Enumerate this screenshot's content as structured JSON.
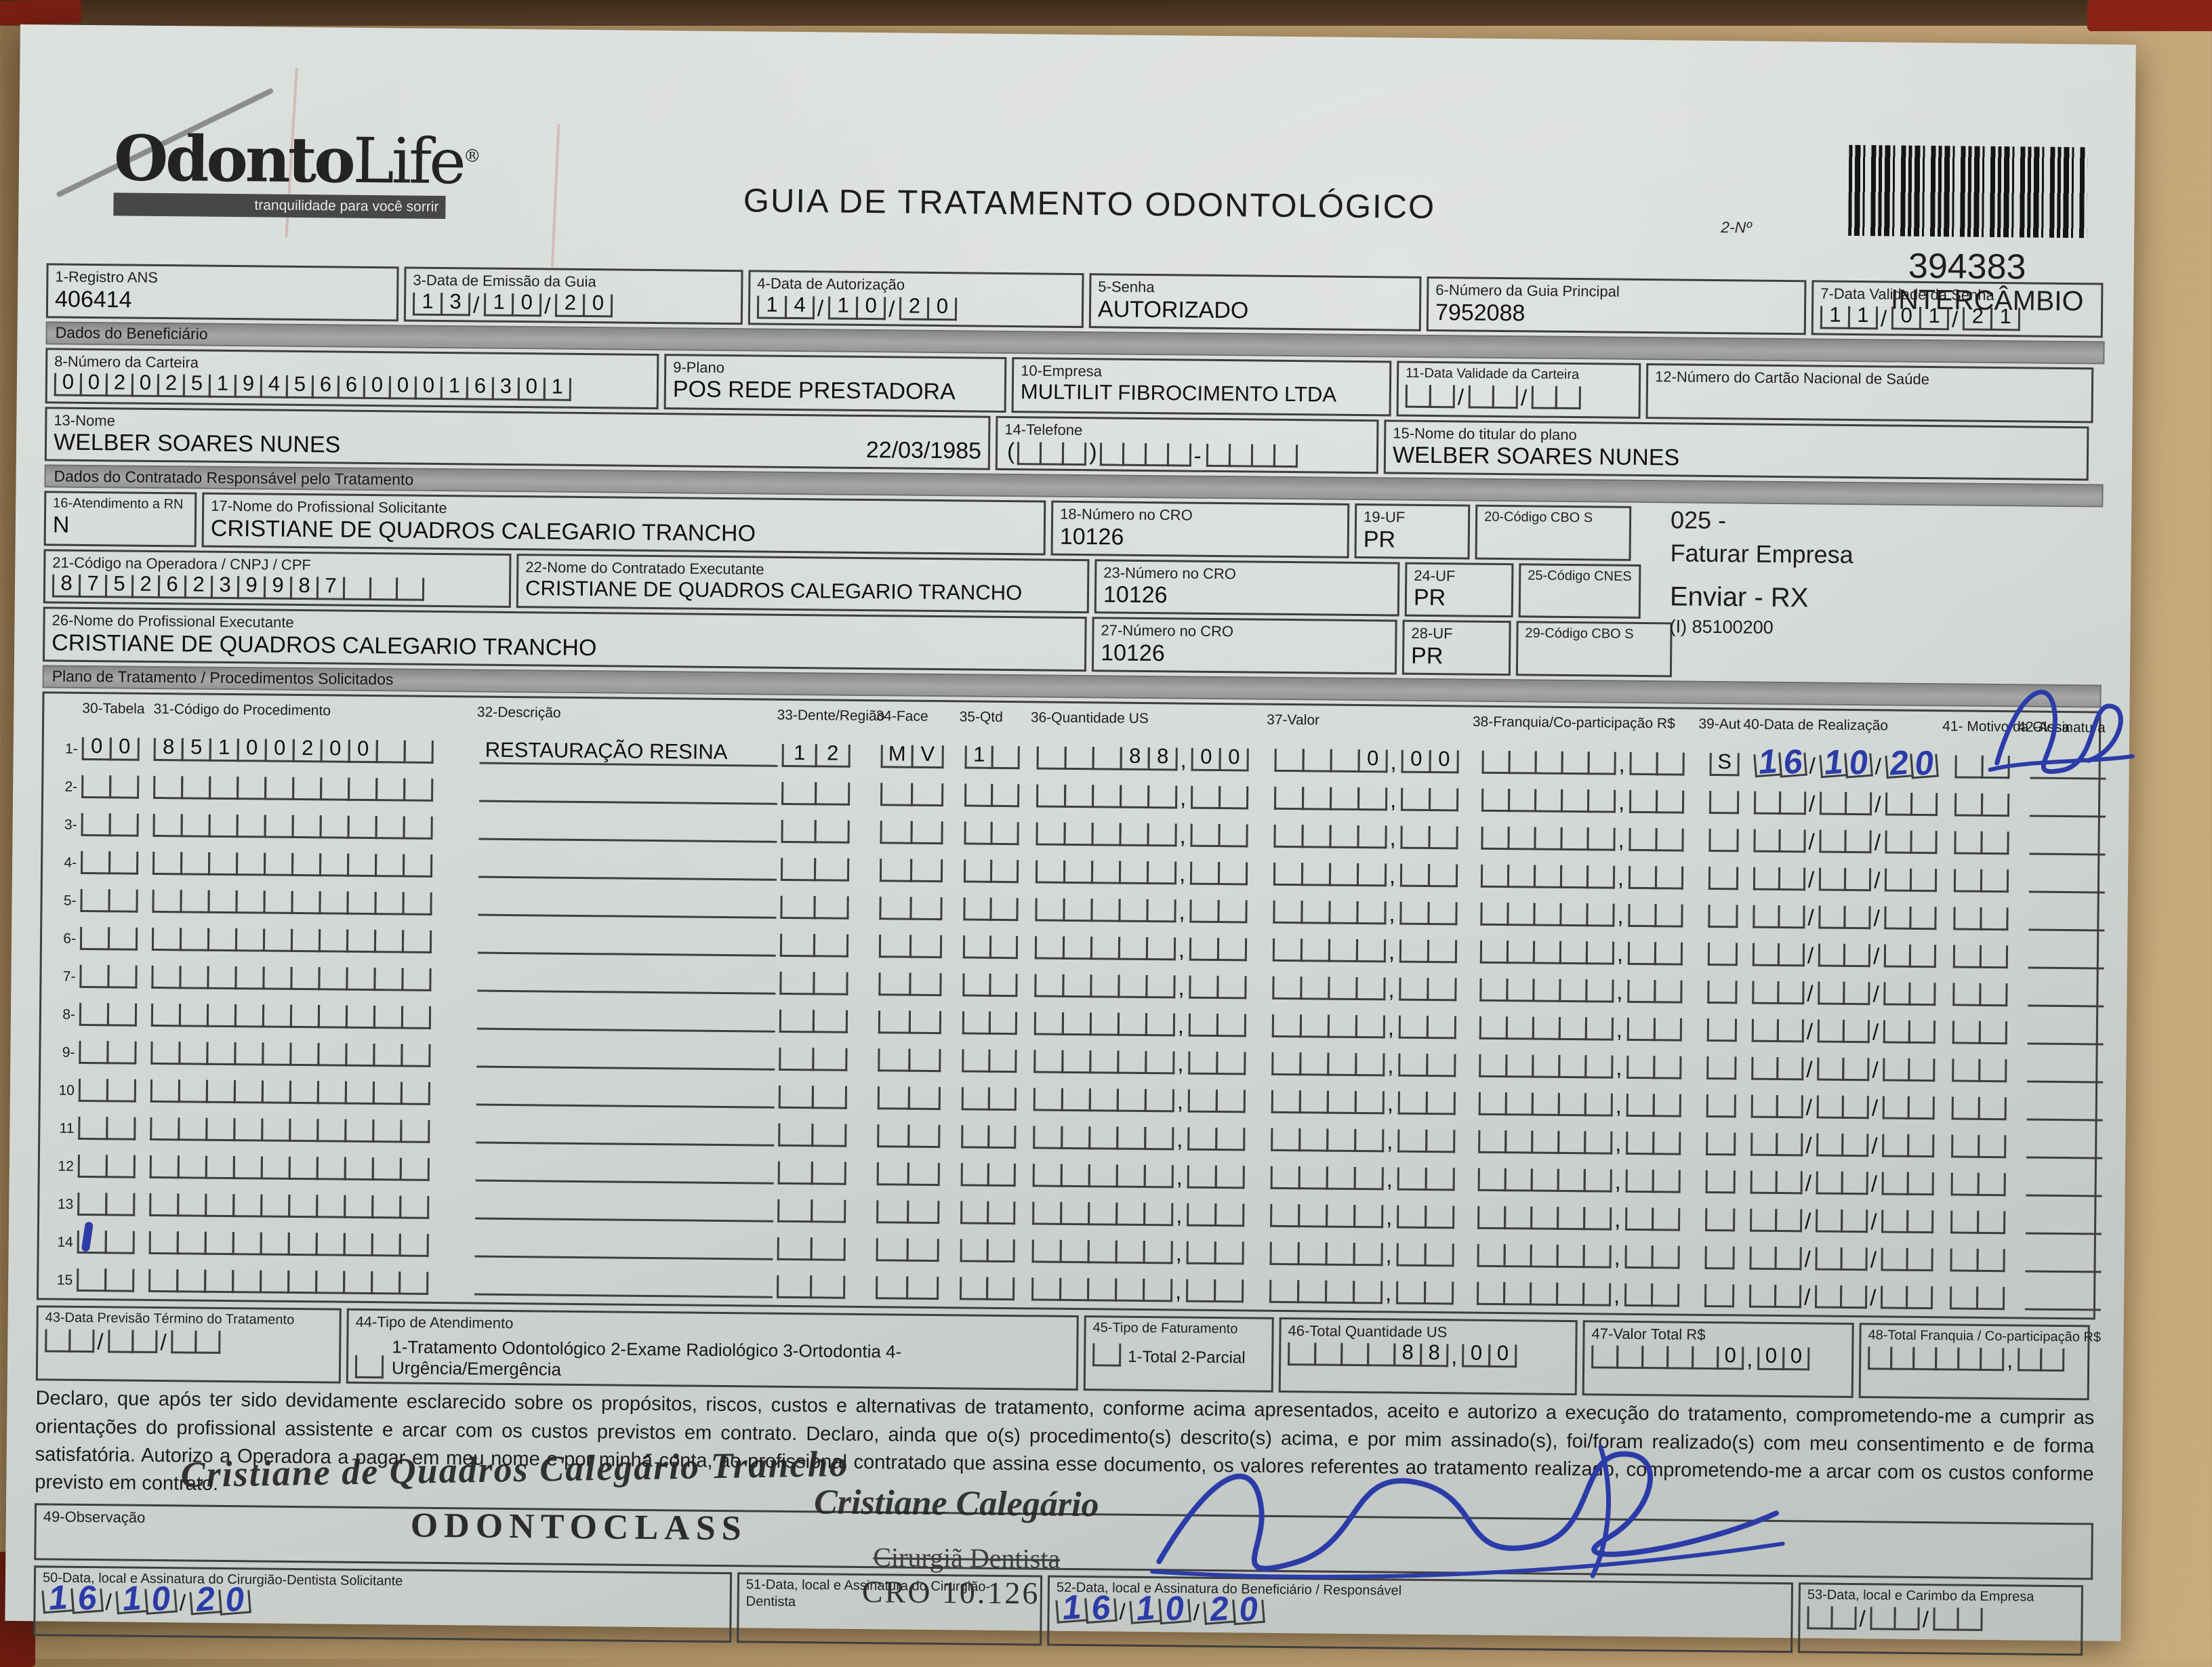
{
  "colors": {
    "ink_blue": "#2b3ca8",
    "paper": "#d4d9d6",
    "desk": "#bb9d6f",
    "stamp": "#242424"
  },
  "header": {
    "logo_text_bold": "Odonto",
    "logo_text_light": "Life",
    "logo_reg": "®",
    "tagline": "tranquilidade para você sorrir",
    "title": "GUIA DE TRATAMENTO ODONTOLÓGICO",
    "barcode_label": "2-Nº",
    "guide_number": "394383",
    "guide_type": "INTERCÂMBIO"
  },
  "sections": {
    "beneficiario": "Dados do Beneficiário",
    "contratado": "Dados do Contratado Responsável pelo Tratamento",
    "plano": "Plano de Tratamento / Procedimentos Solicitados"
  },
  "margin_notes": {
    "l1": "025 -",
    "l2": "Faturar Empresa",
    "l3": "Enviar - RX",
    "l4": "(I) 85100200"
  },
  "fields": {
    "f1": {
      "label": "1-Registro ANS",
      "value": "406414"
    },
    "f3": {
      "label": "3-Data de Emissão da Guia",
      "comb": "13/10/20"
    },
    "f4": {
      "label": "4-Data de Autorização",
      "comb": "14/10/20"
    },
    "f5": {
      "label": "5-Senha",
      "value": "AUTORIZADO"
    },
    "f6": {
      "label": "6-Número da Guia Principal",
      "value": "7952088"
    },
    "f7": {
      "label": "7-Data Validade da Senha",
      "comb": "11/01/21"
    },
    "f8": {
      "label": "8-Número da Carteira",
      "comb": "00202519456600016301"
    },
    "f9": {
      "label": "9-Plano",
      "value": "POS REDE PRESTADORA"
    },
    "f10": {
      "label": "10-Empresa",
      "value": "MULTILIT FIBROCIMENTO LTDA"
    },
    "f11": {
      "label": "11-Data Validade da Carteira",
      "comb": "  /  /  "
    },
    "f12": {
      "label": "12-Número do Cartão Nacional de Saúde",
      "value": ""
    },
    "f13": {
      "label": "13-Nome",
      "value": "WELBER SOARES NUNES",
      "birthdate": "22/03/1985"
    },
    "f14": {
      "label": "14-Telefone",
      "area": "   ",
      "number": "    -    "
    },
    "f15": {
      "label": "15-Nome do titular do plano",
      "value": "WELBER SOARES NUNES"
    },
    "f16": {
      "label": "16-Atendimento a RN",
      "value": "N"
    },
    "f17": {
      "label": "17-Nome do Profissional Solicitante",
      "value": "CRISTIANE DE QUADROS CALEGARIO TRANCHO"
    },
    "f18": {
      "label": "18-Número no CRO",
      "value": "10126"
    },
    "f19": {
      "label": "19-UF",
      "value": "PR"
    },
    "f20": {
      "label": "20-Código CBO S",
      "value": ""
    },
    "f21": {
      "label": "21-Código na Operadora / CNPJ / CPF",
      "comb": "87526239987   "
    },
    "f22": {
      "label": "22-Nome do Contratado Executante",
      "value": "CRISTIANE DE QUADROS CALEGARIO TRANCHO"
    },
    "f23": {
      "label": "23-Número no CRO",
      "value": "10126"
    },
    "f24": {
      "label": "24-UF",
      "value": "PR"
    },
    "f25": {
      "label": "25-Código CNES",
      "value": ""
    },
    "f26": {
      "label": "26-Nome do Profissional Executante",
      "value": "CRISTIANE DE QUADROS CALEGARIO TRANCHO"
    },
    "f27": {
      "label": "27-Número no CRO",
      "value": "10126"
    },
    "f28": {
      "label": "28-UF",
      "value": "PR"
    },
    "f29": {
      "label": "29-Código CBO S",
      "value": ""
    }
  },
  "table": {
    "headers": [
      "30-Tabela",
      "31-Código do Procedimento",
      "32-Descrição",
      "33-Dente/Região",
      "34-Face",
      "35-Qtd",
      "36-Quantidade US",
      "37-Valor",
      "38-Franquia/Co-participação R$",
      "39-Aut",
      "40-Data de Realização",
      "41- Motivo da Glosa",
      "42-Assinatura"
    ],
    "num_rows": 15,
    "ink_mark_row": 14,
    "row1": {
      "tabela": "00",
      "codigo": "85100200  ",
      "descricao": "RESTAURAÇÃO RESINA",
      "dente": "12",
      "face": "MV",
      "qtd": "1 ",
      "qtd_us": "   88,00",
      "valor": "   0,00",
      "franquia": "     ,  ",
      "aut": "S",
      "data_realizacao": "16/10/20",
      "motivo": "  "
    },
    "empty_row": {
      "tabela": "  ",
      "codigo": "          ",
      "descricao": "",
      "dente": "  ",
      "face": "  ",
      "qtd": "  ",
      "qtd_us": "     ,  ",
      "valor": "    ,  ",
      "franquia": "     ,  ",
      "aut": " ",
      "data_realizacao": "  /  /  ",
      "motivo": "  "
    }
  },
  "footer": {
    "f43": {
      "label": "43-Data Previsão Término do Tratamento",
      "comb": "  /  /  "
    },
    "f44": {
      "label": "44-Tipo de Atendimento",
      "options": "1-Tratamento Odontológico  2-Exame Radiológico  3-Ortodontia  4-Urgência/Emergência"
    },
    "f45": {
      "label": "45-Tipo de Faturamento",
      "options": "1-Total  2-Parcial"
    },
    "f46": {
      "label": "46-Total Quantidade US",
      "comb": "    88,00"
    },
    "f47": {
      "label": "47-Valor Total R$",
      "comb": "     0,00"
    },
    "f48": {
      "label": "48-Total Franquia / Co-participação R$",
      "comb": "      ,  "
    },
    "declaration": "Declaro, que após ter sido devidamente esclarecido sobre os propósitos, riscos, custos e alternativas de tratamento, conforme acima apresentados, aceito e autorizo a execução do tratamento, comprometendo-me a cumprir as orientações do profissional assistente e arcar com os custos previstos em contrato. Declaro, ainda que o(s) procedimento(s) descrito(s) acima, e por mim assinado(s), foi/foram realizado(s) com meu consentimento e de forma satisfatória. Autorizo a Operadora a pagar em meu nome e por minha conta, ao profissional contratado que assina esse documento, os valores referentes ao tratamento realizado, comprometendo-me a arcar com os custos conforme previsto em contrato.",
    "f49": {
      "label": "49-Observação"
    },
    "f50": {
      "label": "50-Data, local e Assinatura do Cirurgião-Dentista Solicitante",
      "date": "16/10/20"
    },
    "f51": {
      "label": "51-Data, local e Assinatura do Cirurgião-Dentista"
    },
    "f52": {
      "label": "52-Data, local e Assinatura do Beneficiário / Responsável",
      "date": "16/10/20"
    },
    "f53": {
      "label": "53-Data, local e Carimbo da Empresa",
      "comb": "  /  /  "
    },
    "stamp_name": "Cristiane de Quadros Calegário Trancho",
    "stamp_clinic": "ODONTOCLASS",
    "stamp_name2": "Cristiane Calegário",
    "stamp_role": "Cirurgiã Dentista",
    "stamp_cro": "CRO 10.126"
  }
}
